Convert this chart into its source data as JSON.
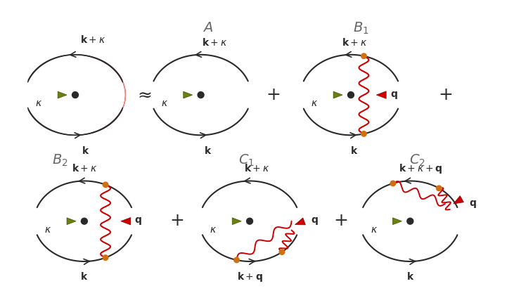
{
  "bg_color": "#ffffff",
  "line_color": "#2a2a2a",
  "red_fill": "#f07070",
  "red_line": "#cc0000",
  "orange_dot": "#d07010",
  "green_col": "#6a8010",
  "dark_col": "#2a2a2a"
}
